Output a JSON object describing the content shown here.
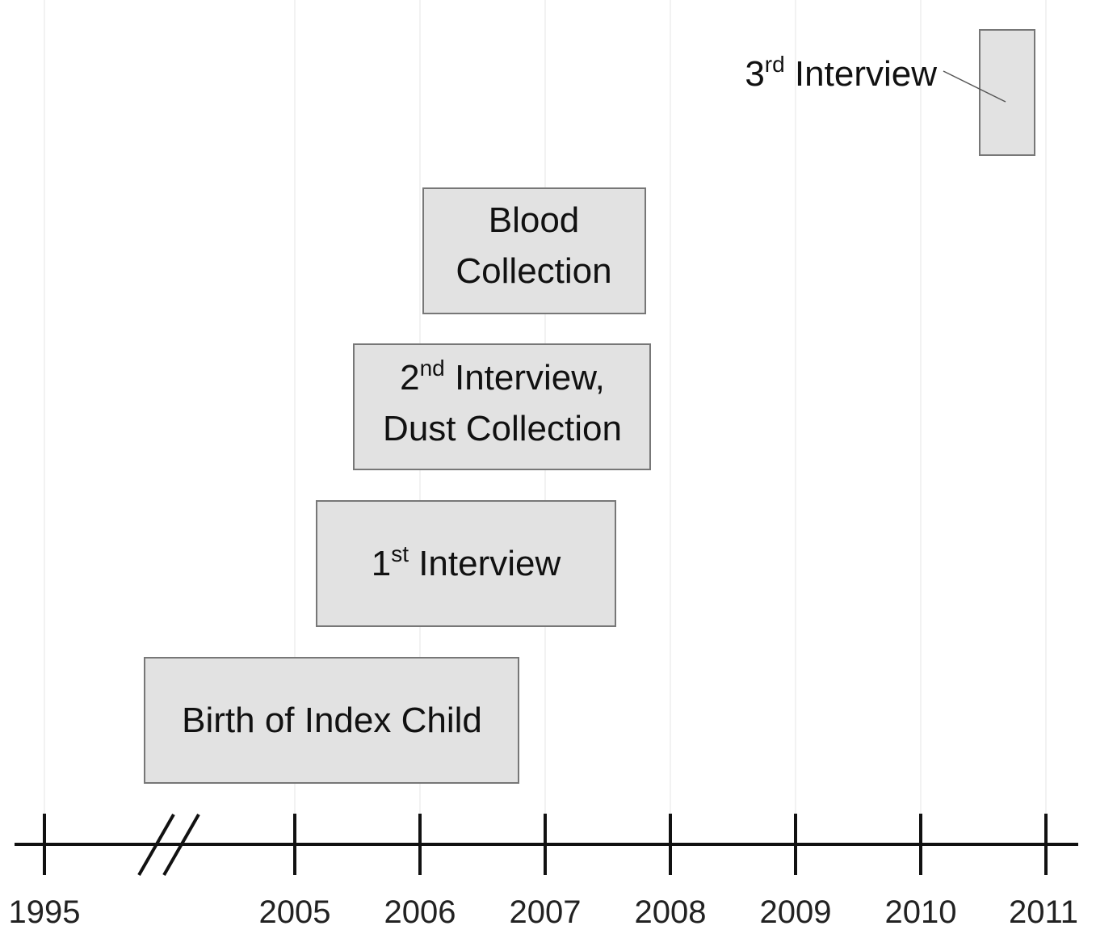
{
  "timeline": {
    "years": [
      "1995",
      "2005",
      "2006",
      "2007",
      "2008",
      "2009",
      "2010",
      "2011"
    ]
  },
  "nodes": [
    {
      "lines": [
        {
          "text": "3",
          "sup": "rd",
          "after": " Interview"
        }
      ]
    },
    {
      "lines": [
        {
          "text": "Blood"
        },
        {
          "text": "Collection"
        }
      ]
    },
    {
      "lines": [
        {
          "text": "2",
          "sup": "nd",
          "after": " Interview,"
        },
        {
          "text": "Dust Collection"
        }
      ]
    },
    {
      "lines": [
        {
          "text": "1",
          "sup": "st",
          "after": " Interview"
        }
      ]
    },
    {
      "lines": [
        {
          "text": "Birth of Index Child"
        }
      ]
    }
  ]
}
